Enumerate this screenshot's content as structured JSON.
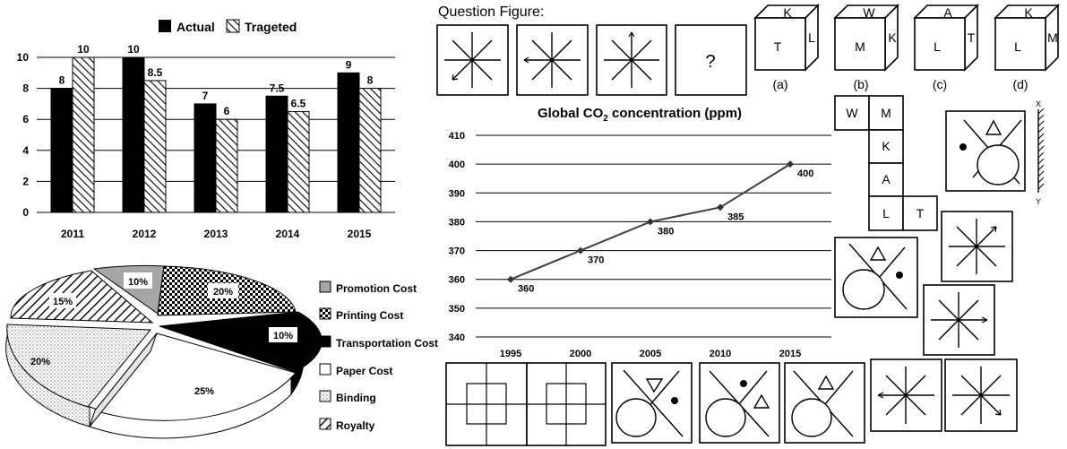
{
  "chart_data": [
    {
      "type": "bar",
      "categories": [
        "2011",
        "2012",
        "2013",
        "2014",
        "2015"
      ],
      "series": [
        {
          "name": "Actual",
          "values": [
            8,
            10,
            7,
            7.5,
            9
          ],
          "color": "#000000"
        },
        {
          "name": "Trageted",
          "values": [
            10,
            8.5,
            6,
            6.5,
            8
          ],
          "color": "hatched"
        }
      ],
      "data_labels": {
        "Actual": [
          "8",
          "10",
          "7",
          "7.5",
          "9"
        ],
        "Trageted": [
          "10",
          "8.5",
          "6",
          "6.5",
          "8"
        ]
      },
      "y_ticks": [
        "0",
        "2",
        "4",
        "6",
        "8",
        "10"
      ],
      "ylim": [
        0,
        10
      ],
      "grid": true,
      "legend_position": "top"
    },
    {
      "type": "pie",
      "style": "3d exploded",
      "slices": [
        {
          "name": "Promotion Cost",
          "value": 10,
          "label": "10%",
          "fill": "gray"
        },
        {
          "name": "Printing Cost",
          "value": 20,
          "label": "20%",
          "fill": "checker"
        },
        {
          "name": "Transportation Cost",
          "value": 10,
          "label": "10%",
          "fill": "black"
        },
        {
          "name": "Paper Cost",
          "value": 25,
          "label": "25%",
          "fill": "white"
        },
        {
          "name": "Binding",
          "value": 20,
          "label": "20%",
          "fill": "dotted"
        },
        {
          "name": "Royalty",
          "value": 15,
          "label": "15%",
          "fill": "diagonal"
        }
      ],
      "legend_position": "right"
    },
    {
      "type": "line",
      "title": "Global CO",
      "title_subscript": "2",
      "title_suffix": " concentration (ppm)",
      "x": [
        "1995",
        "2000",
        "2005",
        "2010",
        "2015"
      ],
      "values": [
        360,
        370,
        380,
        385,
        400
      ],
      "labels": [
        "360",
        "370",
        "380",
        "385",
        "400"
      ],
      "y_ticks": [
        "340",
        "350",
        "360",
        "370",
        "380",
        "390",
        "400",
        "410"
      ],
      "ylim": [
        340,
        410
      ],
      "grid": true
    }
  ],
  "puzzle": {
    "question_label": "Question Figure:",
    "question_mark": "?",
    "cubes": [
      {
        "top": "K",
        "front": "T",
        "side": "L",
        "caption": "(a)"
      },
      {
        "top": "W",
        "front": "M",
        "side": "K",
        "caption": "(b)"
      },
      {
        "top": "A",
        "front": "L",
        "side": "T",
        "caption": "(c)"
      },
      {
        "top": "K",
        "front": "L",
        "side": "M",
        "caption": "(d)"
      }
    ],
    "net": [
      "W",
      "M",
      "K",
      "A",
      "L",
      "T"
    ],
    "mirror_labels": {
      "top": "X",
      "bottom": "Y"
    }
  }
}
